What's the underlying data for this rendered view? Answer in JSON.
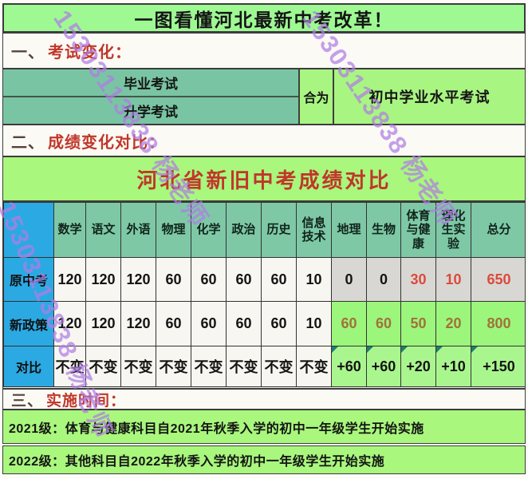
{
  "title_banner": "一图看懂河北最新中考改革！",
  "watermark": {
    "text": "15303113838 杨老师"
  },
  "sections": {
    "s1": {
      "num": "一、",
      "label": "考试变化："
    },
    "s2": {
      "num": "二、",
      "label": "成绩变化对比："
    },
    "s3": {
      "num": "三、",
      "label": "实施时间："
    }
  },
  "exam_change_table": {
    "old_exams": [
      "毕业考试",
      "升学考试"
    ],
    "merge_label": "合为",
    "new_exam": "初中学业水平考试"
  },
  "score_table": {
    "title": "河北省新旧中考成绩对比",
    "columns": [
      "数学",
      "语文",
      "外语",
      "物理",
      "化学",
      "政治",
      "历史",
      "信息\n技术",
      "地理",
      "生物",
      "体育\n与健\n康",
      "理化\n生实\n验",
      "总分"
    ],
    "rows": [
      {
        "label": "原中考",
        "values": [
          "120",
          "120",
          "120",
          "60",
          "60",
          "60",
          "60",
          "10",
          "0",
          "0",
          "30",
          "10",
          "650"
        ]
      },
      {
        "label": "新政策",
        "values": [
          "120",
          "120",
          "120",
          "60",
          "60",
          "60",
          "60",
          "10",
          "60",
          "60",
          "50",
          "20",
          "800"
        ]
      },
      {
        "label": "对比",
        "values": [
          "不变",
          "不变",
          "不变",
          "不变",
          "不变",
          "不变",
          "不变",
          "不变",
          "+60",
          "+60",
          "+20",
          "+10",
          "+150"
        ]
      }
    ]
  },
  "implementation": [
    "2021级：体育与健康科目自2021年秋季入学的初中一年级学生开始实施",
    "2022级：其他科目自2022年秋季入学的初中一年级学生开始实施"
  ],
  "colors": {
    "banner1_bg": "#9ef993",
    "banner2_bg": "#a9f77d",
    "lime_bg": "#a9f582",
    "teal_bg": "#79c5a3",
    "header_teal_bg": "#7ec8a6",
    "label_blue_bg": "#2ba9e2",
    "gray_bg": "#d8d7d3",
    "new_green_bg": "#9cf67c",
    "compare_green_bg": "#aaf68e",
    "red_text": "#dc4a3c",
    "brown_text": "#a1713a",
    "section_red": "#c0372a",
    "watermark_purple": "#b07de5"
  }
}
